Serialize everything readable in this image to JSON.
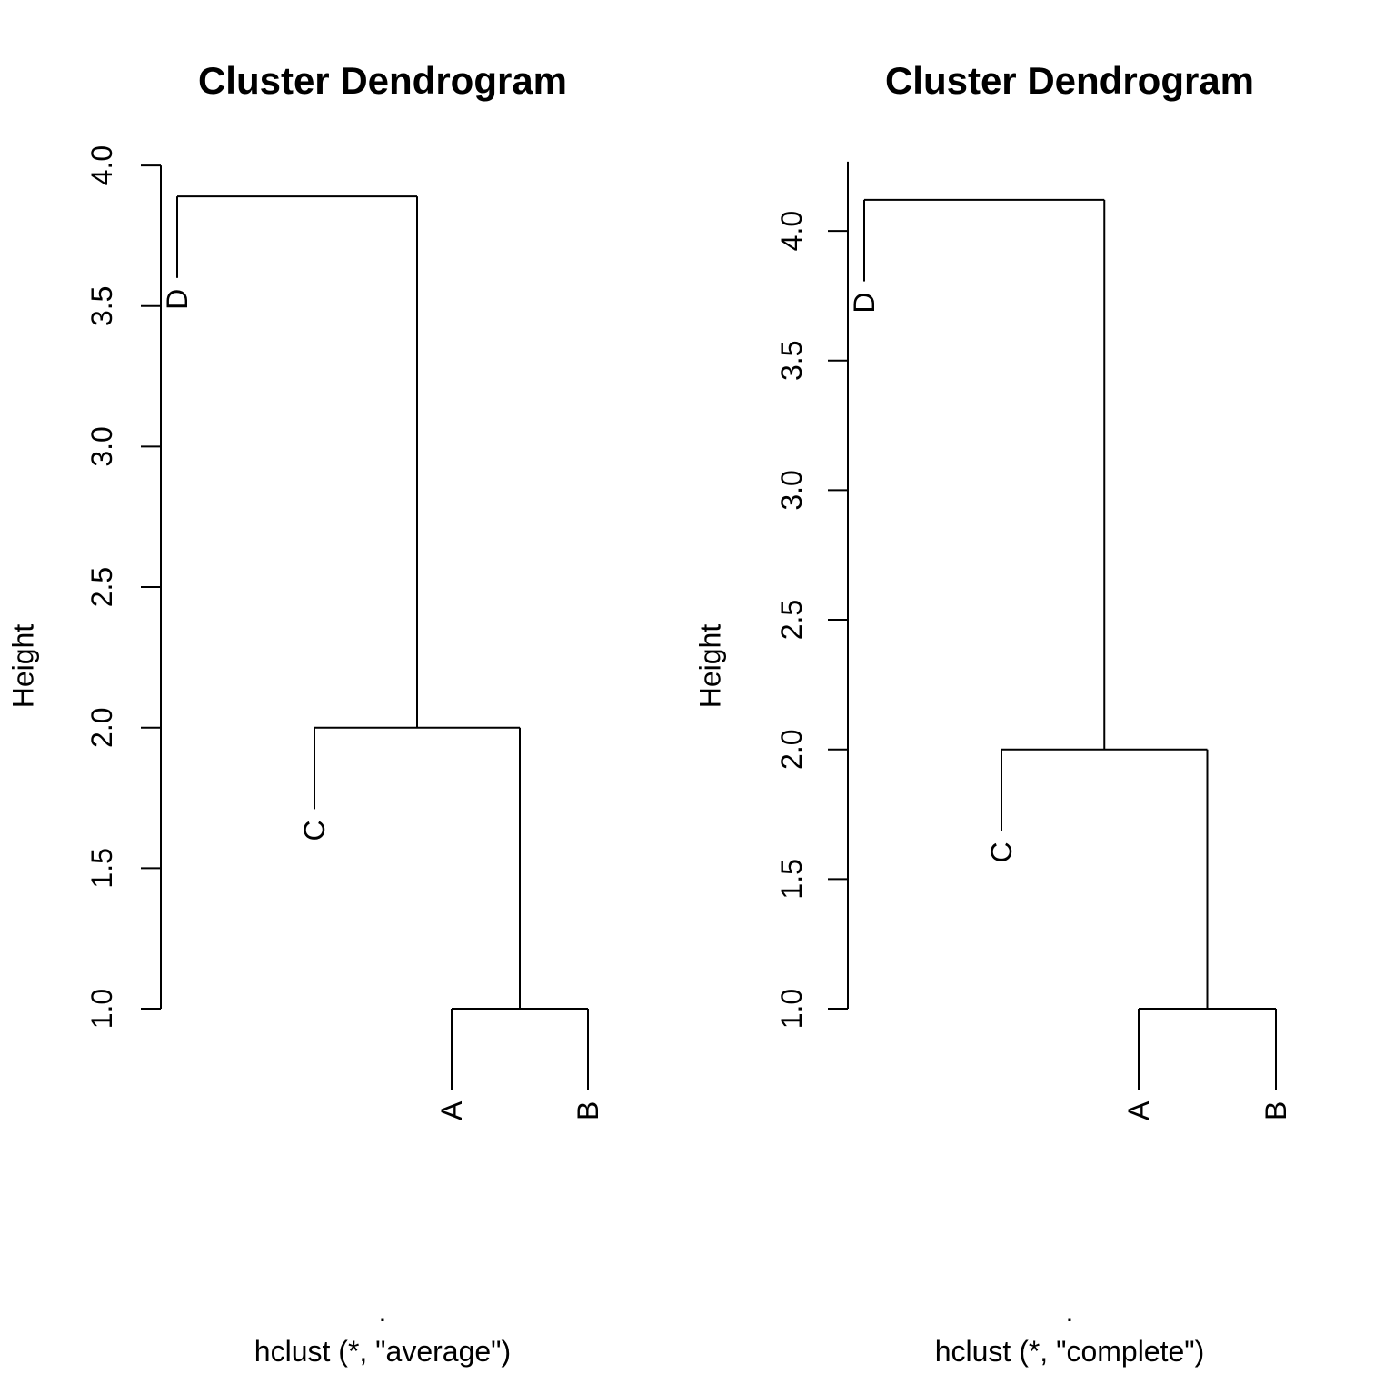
{
  "chart_data": [
    {
      "type": "dendrogram",
      "title": "Cluster Dendrogram",
      "ylabel": "Height",
      "xlabel": ".",
      "sub": "hclust (*, \"average\")",
      "ylim": [
        1.0,
        4.0
      ],
      "yticks": [
        "1.0",
        "1.5",
        "2.0",
        "2.5",
        "3.0",
        "3.5",
        "4.0"
      ],
      "leaf_order": [
        "D",
        "C",
        "A",
        "B"
      ],
      "merges": [
        {
          "left": "A",
          "right": "B",
          "height": 1.0
        },
        {
          "left": "C",
          "right": "AB",
          "height": 2.0
        },
        {
          "left": "D",
          "right": "ABC",
          "height": 3.89
        }
      ]
    },
    {
      "type": "dendrogram",
      "title": "Cluster Dendrogram",
      "ylabel": "Height",
      "xlabel": ".",
      "sub": "hclust (*, \"complete\")",
      "ylim": [
        1.0,
        4.0
      ],
      "yticks": [
        "1.0",
        "1.5",
        "2.0",
        "2.5",
        "3.0",
        "3.5",
        "4.0"
      ],
      "leaf_order": [
        "D",
        "C",
        "A",
        "B"
      ],
      "merges": [
        {
          "left": "A",
          "right": "B",
          "height": 1.0
        },
        {
          "left": "C",
          "right": "AB",
          "height": 2.0
        },
        {
          "left": "D",
          "right": "ABC",
          "height": 4.12
        }
      ]
    }
  ]
}
